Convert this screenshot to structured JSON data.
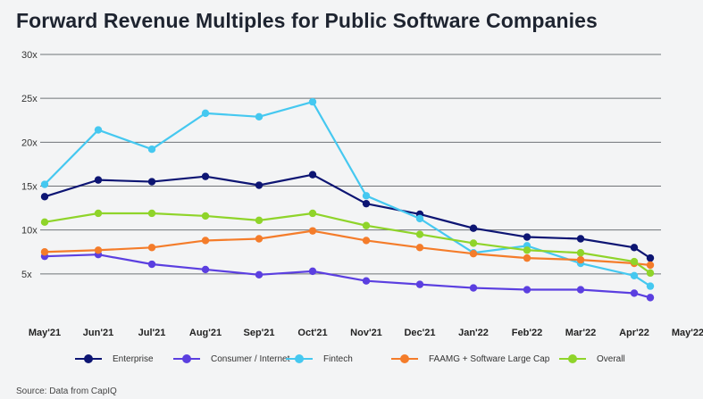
{
  "title": "Forward Revenue Multiples for Public Software Companies",
  "source": "Source: Data from CapIQ",
  "chart_data": {
    "type": "line",
    "title": "Forward Revenue Multiples for Public Software Companies",
    "xlabel": "",
    "ylabel": "",
    "categories": [
      "May'21",
      "Jun'21",
      "Jul'21",
      "Aug'21",
      "Sep'21",
      "Oct'21",
      "Nov'21",
      "Dec'21",
      "Jan'22",
      "Feb'22",
      "Mar'22",
      "Apr'22",
      "May'22"
    ],
    "y_ticks": [
      "5x",
      "10x",
      "15x",
      "20x",
      "25x",
      "30x"
    ],
    "ylim": [
      0,
      30
    ],
    "grid": true,
    "legend_position": "bottom",
    "series": [
      {
        "name": "Enterprise",
        "color": "#0d1573",
        "x": [
          0,
          1,
          2,
          3,
          4,
          5,
          6,
          7,
          8,
          9,
          10,
          11,
          11.3
        ],
        "values": [
          13.8,
          15.7,
          15.5,
          16.1,
          15.1,
          16.3,
          13.0,
          11.8,
          10.2,
          9.2,
          9.0,
          8.0,
          6.8
        ]
      },
      {
        "name": "Consumer / Internet",
        "color": "#5b3fe0",
        "x": [
          0,
          1,
          2,
          3,
          4,
          5,
          6,
          7,
          8,
          9,
          10,
          11,
          11.3
        ],
        "values": [
          7.0,
          7.2,
          6.1,
          5.5,
          4.9,
          5.3,
          4.2,
          3.8,
          3.4,
          3.2,
          3.2,
          2.8,
          2.3
        ]
      },
      {
        "name": "Fintech",
        "color": "#45c8f0",
        "x": [
          0,
          1,
          2,
          3,
          4,
          5,
          6,
          7,
          8,
          9,
          10,
          11,
          11.3
        ],
        "values": [
          15.2,
          21.4,
          19.2,
          23.3,
          22.9,
          24.6,
          13.9,
          11.3,
          7.4,
          8.2,
          6.2,
          4.8,
          3.6
        ]
      },
      {
        "name": "FAAMG + Software Large Cap",
        "color": "#f47c2a",
        "x": [
          0,
          1,
          2,
          3,
          4,
          5,
          6,
          7,
          8,
          9,
          10,
          11,
          11.3
        ],
        "values": [
          7.5,
          7.7,
          8.0,
          8.8,
          9.0,
          9.9,
          8.8,
          8.0,
          7.3,
          6.8,
          6.6,
          6.2,
          6.0
        ]
      },
      {
        "name": "Overall",
        "color": "#8fd42a",
        "x": [
          0,
          1,
          2,
          3,
          4,
          5,
          6,
          7,
          8,
          9,
          10,
          11,
          11.3
        ],
        "values": [
          10.9,
          11.9,
          11.9,
          11.6,
          11.1,
          11.9,
          10.5,
          9.5,
          8.5,
          7.7,
          7.4,
          6.4,
          5.1
        ]
      }
    ]
  }
}
